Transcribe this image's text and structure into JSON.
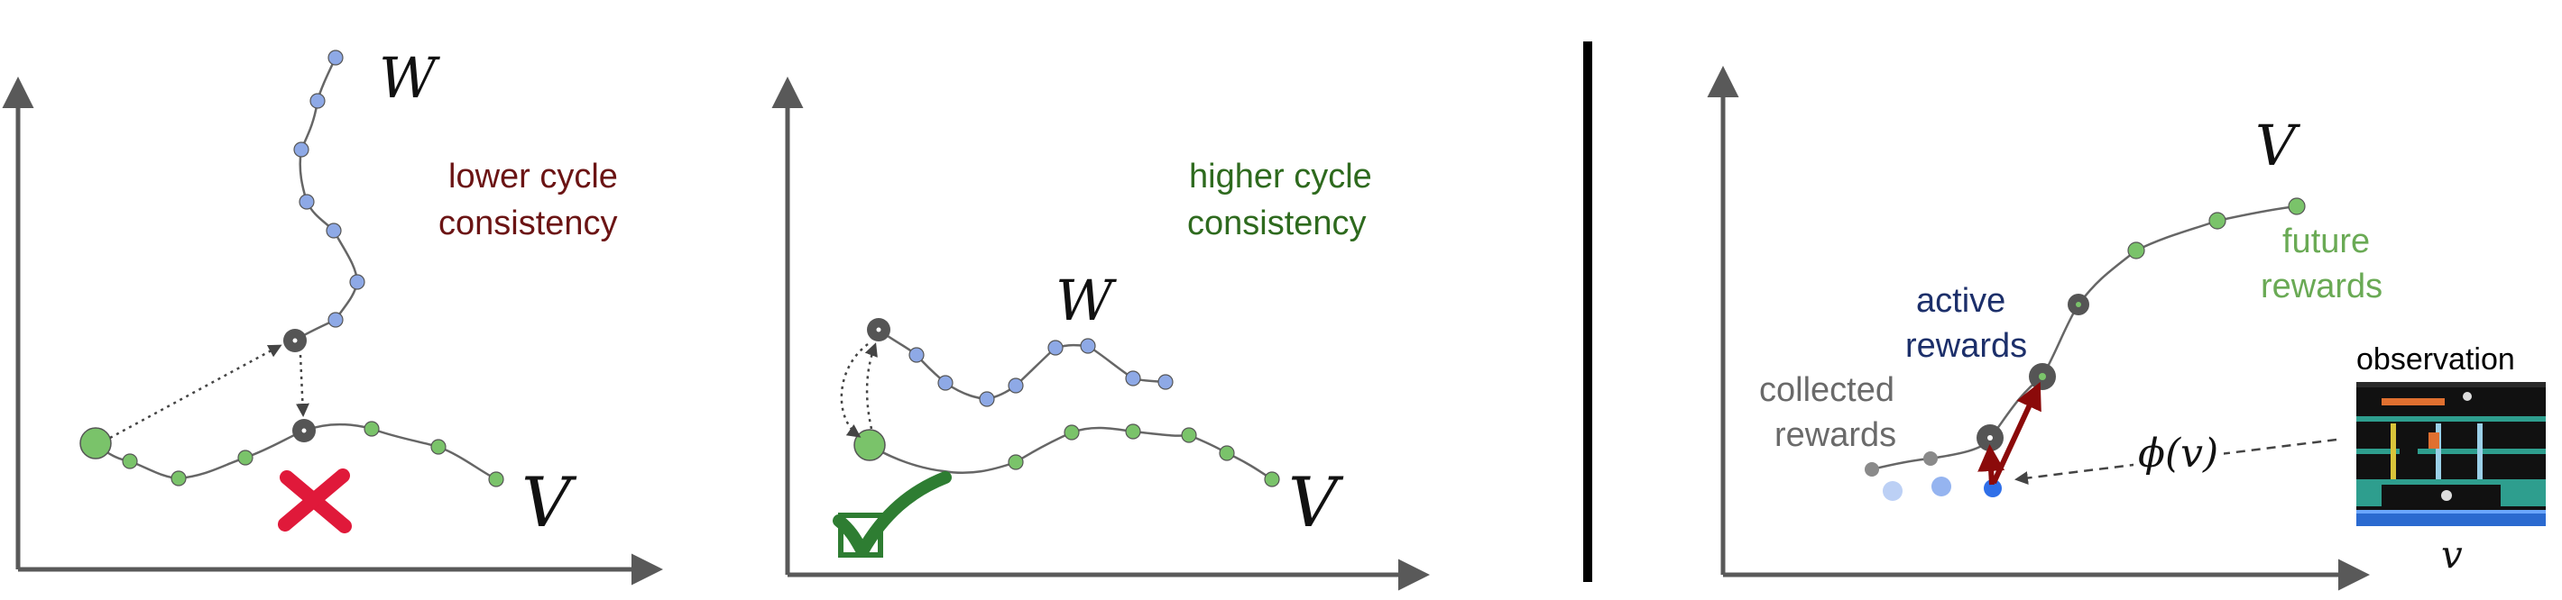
{
  "panel1": {
    "trajectory_w_label": "W",
    "trajectory_v_label": "V",
    "annotation_line1": "lower cycle",
    "annotation_line2": "consistency"
  },
  "panel2": {
    "trajectory_w_label": "W",
    "trajectory_v_label": "V",
    "annotation_line1": "higher cycle",
    "annotation_line2": "consistency"
  },
  "panel3": {
    "trajectory_v_label": "V",
    "future_line1": "future",
    "future_line2": "rewards",
    "active_line1": "active",
    "active_line2": "rewards",
    "collected_line1": "collected",
    "collected_line2": "rewards",
    "embedding_label": "ϕ(v)",
    "observation_label": "observation",
    "observation_var": "v"
  },
  "colors": {
    "axis": "#595959",
    "curve": "#666666",
    "w_node": "#8ea9e6",
    "v_node": "#7ac36a",
    "anchor": "#555555",
    "lower_text": "#6b1414",
    "higher_text": "#2e6a1e",
    "active_text": "#1c2f6a",
    "collected_text": "#6a6a6a",
    "future_text": "#6aaa55",
    "cross": "#e0193a",
    "check": "#2e7d32",
    "reward_arrow": "#8b0a0a",
    "observation_bg": "#111111",
    "observation_floor": "#2e9e8e"
  }
}
